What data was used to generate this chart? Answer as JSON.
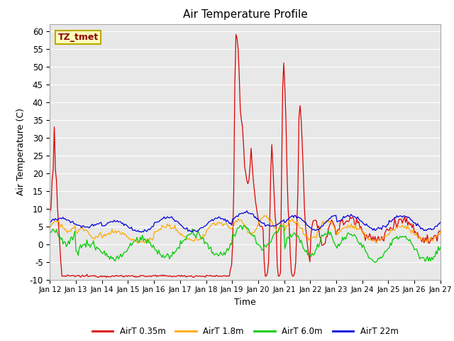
{
  "title": "Air Temperature Profile",
  "xlabel": "Time",
  "ylabel": "Air Temperature (C)",
  "ylim": [
    -10,
    62
  ],
  "yticks": [
    -10,
    -5,
    0,
    5,
    10,
    15,
    20,
    25,
    30,
    35,
    40,
    45,
    50,
    55,
    60
  ],
  "x_labels": [
    "Jan 12",
    "Jan 13",
    "Jan 14",
    "Jan 15",
    "Jan 16",
    "Jan 17",
    "Jan 18",
    "Jan 19",
    "Jan 20",
    "Jan 21",
    "Jan 22",
    "Jan 23",
    "Jan 24",
    "Jan 25",
    "Jan 26",
    "Jan 27"
  ],
  "colors": {
    "red": "#dd0000",
    "orange": "#ffaa00",
    "green": "#00cc00",
    "blue": "#0000dd"
  },
  "legend_labels": [
    "AirT 0.35m",
    "AirT 1.8m",
    "AirT 6.0m",
    "AirT 22m"
  ],
  "annotation_text": "TZ_tmet",
  "annotation_color": "#880000",
  "annotation_bg": "#ffffbb",
  "annotation_edge": "#bbaa00",
  "plot_bg": "#e8e8e8",
  "fig_bg": "#ffffff",
  "grid_color": "#ffffff",
  "n_days": 15,
  "n_per_day": 24
}
